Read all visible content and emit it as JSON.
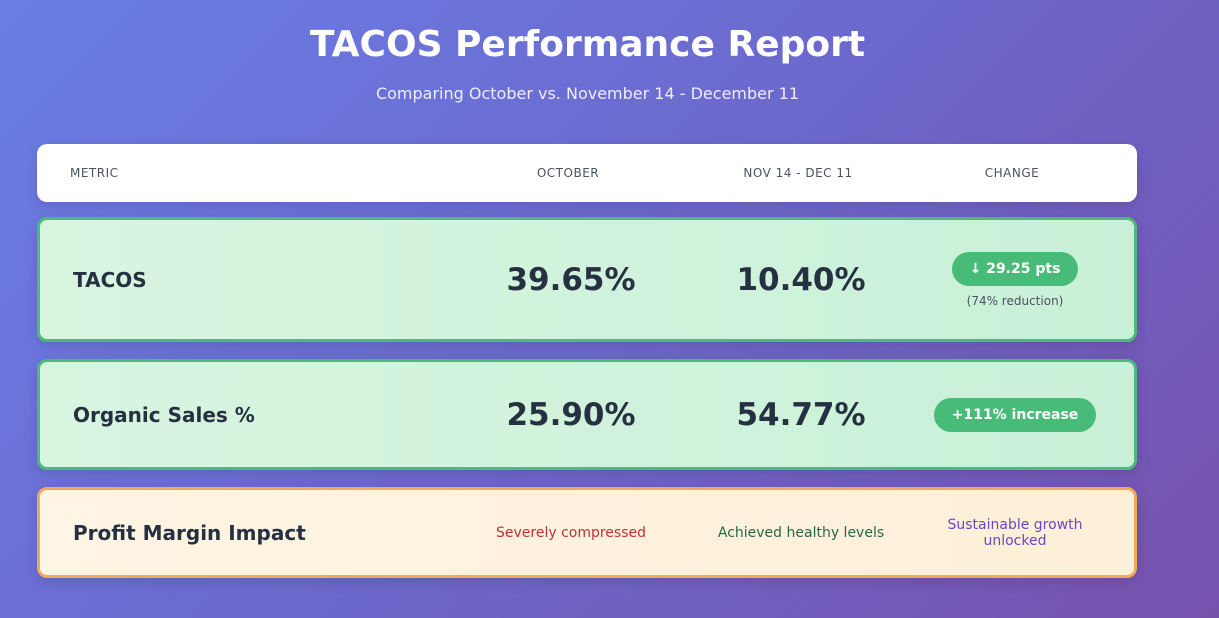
{
  "header": {
    "title": "TACOS Performance Report",
    "subtitle": "Comparing October vs. November 14 - December 11"
  },
  "columns": [
    "METRIC",
    "OCTOBER",
    "NOV 14 - DEC 11",
    "CHANGE"
  ],
  "rows": [
    {
      "metric": "TACOS",
      "october": "39.65%",
      "nov_dec": "10.40%",
      "change": "↓ 29.25 pts",
      "change_note": "(74% reduction)"
    },
    {
      "metric": "Organic Sales %",
      "october": "25.90%",
      "nov_dec": "54.77%",
      "change": "+111% increase"
    }
  ],
  "impact": {
    "metric": "Profit Margin Impact",
    "october": "Severely compressed",
    "nov_dec": "Achieved healthy levels",
    "change": "Sustainable growth unlocked"
  },
  "colors": {
    "positive": "#48bb78",
    "october_impact": "#c53030",
    "nov_impact": "#276749",
    "change_impact": "#6b46c1"
  }
}
